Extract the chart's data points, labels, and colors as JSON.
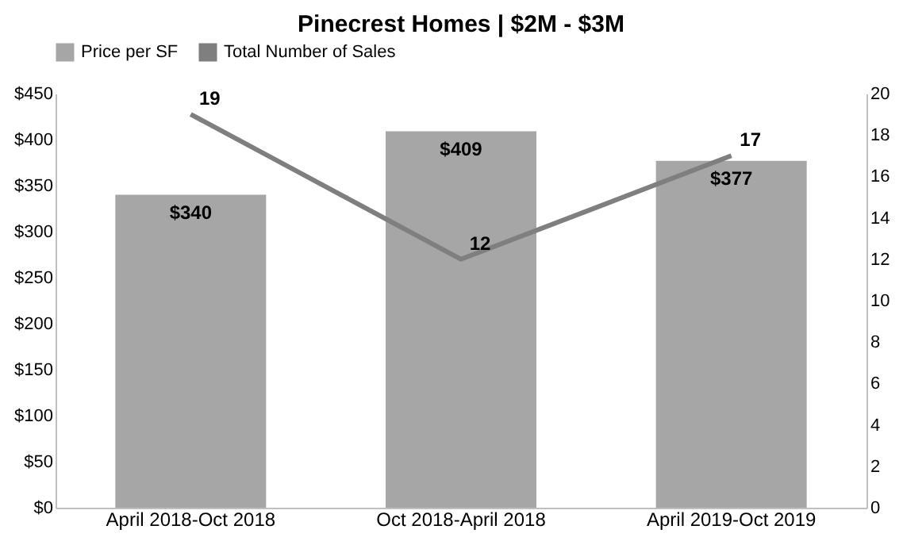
{
  "chart_data": {
    "type": "bar",
    "title": "Pinecrest Homes | $2M - $3M",
    "categories": [
      "April 2018-Oct 2018",
      "Oct 2018-April 2018",
      "April 2019-Oct 2019"
    ],
    "series": [
      {
        "name": "Price per SF",
        "type": "bar",
        "color": "#a6a6a6",
        "values": [
          340,
          409,
          377
        ],
        "value_labels": [
          "$340",
          "$409",
          "$377"
        ]
      },
      {
        "name": "Total Number of Sales",
        "type": "line",
        "axis": "y2",
        "color": "#7f7f7f",
        "values": [
          19,
          12,
          17
        ],
        "value_labels": [
          "19",
          "12",
          "17"
        ]
      }
    ],
    "ylim": [
      0,
      450
    ],
    "yticks": [
      {
        "value": 0,
        "label": "$0"
      },
      {
        "value": 50,
        "label": "$50"
      },
      {
        "value": 100,
        "label": "$100"
      },
      {
        "value": 150,
        "label": "$150"
      },
      {
        "value": 200,
        "label": "$200"
      },
      {
        "value": 250,
        "label": "$250"
      },
      {
        "value": 300,
        "label": "$300"
      },
      {
        "value": 350,
        "label": "$350"
      },
      {
        "value": 400,
        "label": "$400"
      },
      {
        "value": 450,
        "label": "$450"
      }
    ],
    "y2lim": [
      0,
      20
    ],
    "y2ticks": [
      0,
      2,
      4,
      6,
      8,
      10,
      12,
      14,
      16,
      18,
      20
    ],
    "grid": false,
    "legend": "top",
    "marker": "none",
    "line_style": "solid"
  }
}
